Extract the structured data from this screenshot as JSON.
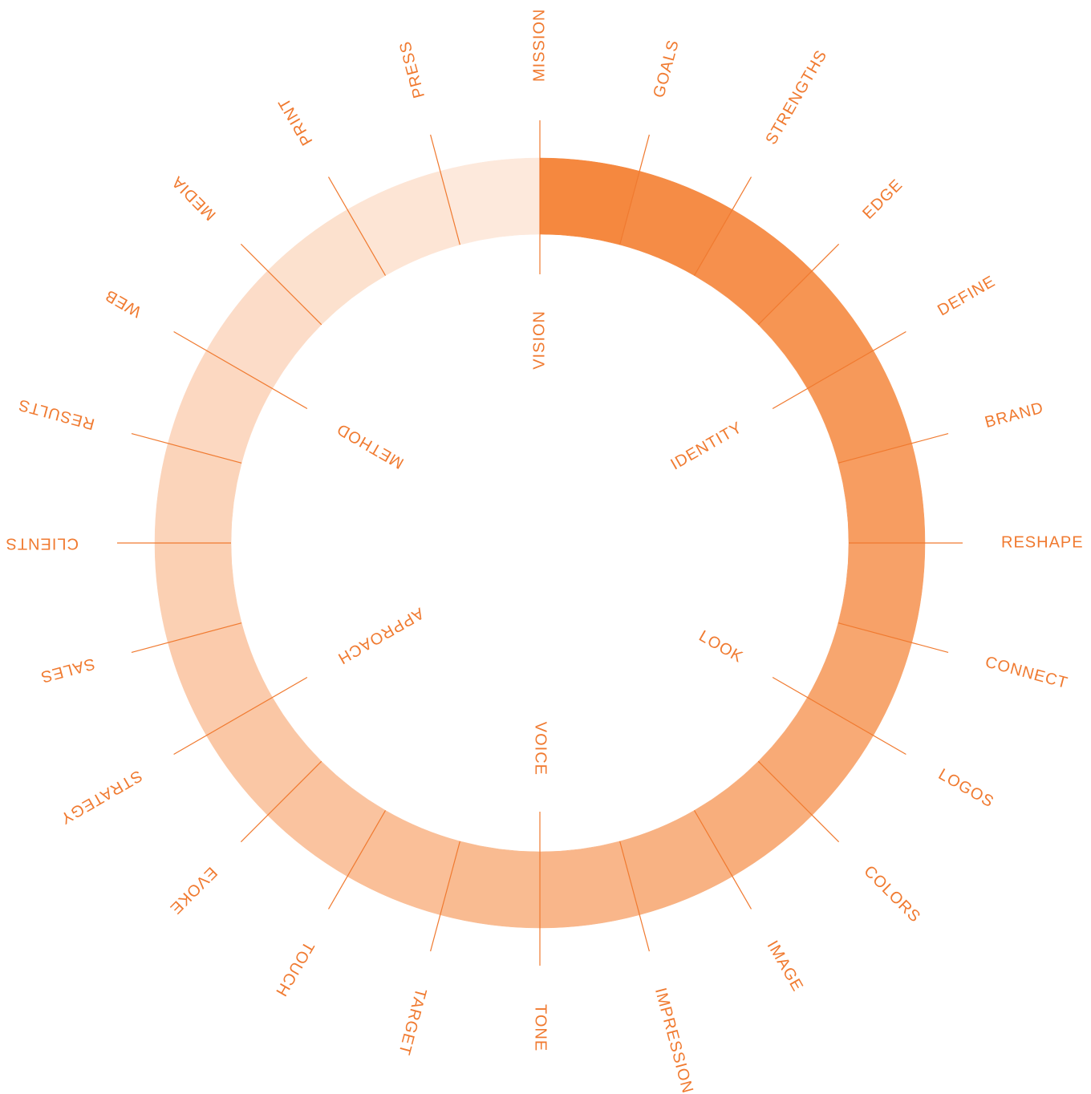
{
  "outer_labels": [
    "MISSION",
    "GOALS",
    "STRENGTHS",
    "EDGE",
    "DEFINE",
    "BRAND",
    "RESHAPE",
    "CONNECT",
    "LOGOS",
    "COLORS",
    "IMAGE",
    "IMPRESSION",
    "TONE",
    "TARGET",
    "TOUCH",
    "EVOKE",
    "STRATEGY",
    "SALES",
    "CLIENTS",
    "RESULTS",
    "WEB",
    "MEDIA",
    "PRINT",
    "PRESS"
  ],
  "inner_labels": [
    "VISION",
    "IDENTITY",
    "LOOK",
    "VOICE",
    "APPROACH",
    "METHOD"
  ],
  "ring": {
    "color_start": "#f5883f",
    "color_end": "#fde9dc"
  }
}
